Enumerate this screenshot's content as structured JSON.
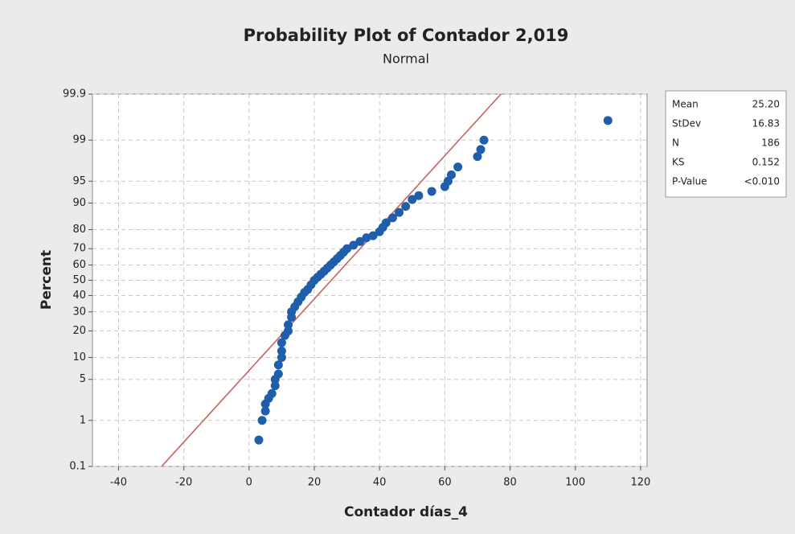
{
  "chart_data": {
    "type": "probability",
    "title": "Probability Plot of Contador 2,019",
    "subtitle": "Normal",
    "x_label": "Contador días_4",
    "y_label": "Percent",
    "xlim": [
      -48,
      122
    ],
    "xticks": [
      -40,
      -20,
      0,
      20,
      40,
      60,
      80,
      100,
      120
    ],
    "ylim": [
      0.1,
      99.9
    ],
    "yticks": [
      0.1,
      1,
      5,
      10,
      20,
      30,
      40,
      50,
      60,
      70,
      80,
      90,
      95,
      99,
      99.9
    ],
    "grid": true,
    "color": "#1f5eaa",
    "line_color": "#c8635f",
    "x": [
      3,
      4,
      5,
      5,
      6,
      7,
      8,
      8,
      9,
      9,
      10,
      10,
      10,
      11,
      12,
      12,
      13,
      13,
      14,
      15,
      16,
      17,
      18,
      19,
      20,
      21,
      22,
      23,
      24,
      25,
      26,
      27,
      28,
      29,
      30,
      32,
      34,
      36,
      38,
      40,
      41,
      42,
      44,
      46,
      48,
      50,
      52,
      56,
      60,
      61,
      62,
      64,
      70,
      71,
      72,
      110
    ],
    "values": [
      0.4,
      1,
      1.5,
      2,
      2.5,
      3,
      4,
      5,
      6,
      8,
      10,
      12,
      15,
      18,
      20,
      23,
      27,
      30,
      33,
      36,
      39,
      42,
      44,
      47,
      50,
      52,
      54,
      56,
      58,
      60,
      62,
      64,
      66,
      68,
      70,
      72,
      74,
      76,
      77,
      79,
      81,
      83,
      85,
      87,
      89,
      91,
      92,
      93,
      94,
      95,
      96,
      97,
      98,
      98.5,
      99,
      99.6
    ],
    "stats": [
      {
        "name": "Mean",
        "value": {
          "value": 25.2,
          "label": "25.20"
        }
      },
      {
        "name": "StDev",
        "value": 16.83
      },
      {
        "name": "N",
        "value": 186
      },
      {
        "name": "KS",
        "value": 0.152
      },
      {
        "name": "P-Value",
        "value": "<0.010"
      }
    ]
  }
}
